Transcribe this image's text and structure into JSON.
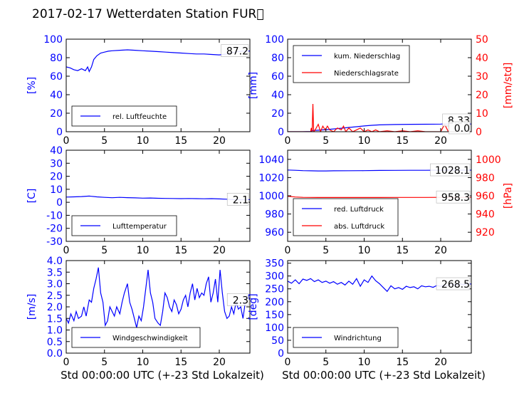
{
  "title": "2017-02-17 Wetterdaten Station FUR\u0000",
  "colors": {
    "blue": "#0000ff",
    "red": "#ff0000",
    "black": "#000000"
  },
  "chart_data": [
    {
      "id": "humidity",
      "type": "line",
      "xlim": [
        0,
        24
      ],
      "ylim": [
        0,
        100
      ],
      "xticks": [
        0,
        5,
        10,
        15,
        20
      ],
      "yticks": [
        0,
        20,
        40,
        60,
        80,
        100
      ],
      "ylabel": "[%]",
      "xlabel": "",
      "legend": {
        "placement": "lower-left",
        "entries": [
          {
            "label": "rel. Luftfeuchte",
            "color": "#0000ff"
          }
        ]
      },
      "latest_label": "87.2",
      "series": [
        {
          "name": "rel. Luftfeuchte",
          "color": "#0000ff",
          "x": [
            0,
            0.5,
            1,
            1.5,
            2,
            2.5,
            2.8,
            3,
            3.3,
            3.6,
            4,
            4.5,
            5,
            5.5,
            6,
            7,
            8,
            9,
            10,
            11,
            12,
            13,
            14,
            15,
            16,
            17,
            18,
            19,
            20,
            21,
            22,
            23,
            24
          ],
          "y": [
            70,
            69,
            67,
            66,
            68,
            66,
            70,
            65,
            70,
            78,
            82,
            85,
            86,
            87,
            87.5,
            88,
            88.5,
            88,
            87.5,
            87,
            86.5,
            86,
            85.5,
            85,
            84.5,
            84,
            84,
            83.5,
            83,
            84,
            86,
            87,
            87.2
          ]
        }
      ]
    },
    {
      "id": "precipitation",
      "type": "line",
      "xlim": [
        0,
        24
      ],
      "ylim": [
        0,
        100
      ],
      "y2lim": [
        0,
        50
      ],
      "xticks": [
        0,
        5,
        10,
        15,
        20
      ],
      "yticks": [
        0,
        20,
        40,
        60,
        80,
        100
      ],
      "y2ticks": [
        0,
        10,
        20,
        30,
        40,
        50
      ],
      "ylabel": "[mm]",
      "y2label": "[mm/std]",
      "xlabel": "",
      "legend": {
        "placement": "upper-left",
        "entries": [
          {
            "label": "kum. Niederschlag",
            "color": "#0000ff"
          },
          {
            "label": "Niederschlagsrate",
            "color": "#ff0000"
          }
        ]
      },
      "latest_labels": [
        "8.33",
        "0.0"
      ],
      "series": [
        {
          "name": "kum. Niederschlag",
          "axis": "left",
          "color": "#0000ff",
          "x": [
            0,
            2,
            3,
            3.3,
            4,
            5,
            6,
            7,
            8,
            9,
            10,
            11,
            12,
            14,
            16,
            18,
            20,
            20.2,
            24
          ],
          "y": [
            0,
            0,
            0.2,
            1.3,
            1.6,
            2.2,
            3,
            3.8,
            4.6,
            5.4,
            6.2,
            6.9,
            7.4,
            7.8,
            8.0,
            8.1,
            8.2,
            8.33,
            8.33
          ]
        },
        {
          "name": "Niederschlagsrate",
          "axis": "right",
          "color": "#ff0000",
          "x": [
            0,
            3,
            3.1,
            3.2,
            3.3,
            3.4,
            3.6,
            4,
            4.3,
            4.6,
            4.9,
            5.2,
            5.5,
            6,
            6.5,
            7,
            7.3,
            7.6,
            8,
            8.5,
            9,
            9.5,
            10,
            10.5,
            11,
            11.5,
            12,
            13,
            14,
            15,
            16,
            17,
            18,
            19,
            20,
            20.5,
            21,
            24
          ],
          "y": [
            0,
            0,
            2,
            0,
            15,
            0,
            1,
            4,
            0,
            3,
            1,
            3,
            1,
            0,
            2,
            1,
            3,
            0,
            2,
            0,
            1,
            2,
            0,
            1,
            0,
            1,
            0,
            0.5,
            0,
            0.5,
            0,
            0.5,
            0,
            0,
            0,
            4,
            0,
            0
          ]
        }
      ]
    },
    {
      "id": "temperature",
      "type": "line",
      "xlim": [
        0,
        24
      ],
      "ylim": [
        -30,
        40
      ],
      "xticks": [
        0,
        5,
        10,
        15,
        20
      ],
      "yticks": [
        -30,
        -20,
        -10,
        0,
        10,
        20,
        30,
        40
      ],
      "ylabel": "[C]",
      "xlabel": "",
      "legend": {
        "placement": "lower-left",
        "entries": [
          {
            "label": "Lufttemperatur",
            "color": "#0000ff"
          }
        ]
      },
      "latest_label": "2.1",
      "series": [
        {
          "name": "Lufttemperatur",
          "color": "#0000ff",
          "x": [
            0,
            1,
            2,
            3,
            4,
            5,
            6,
            7,
            8,
            9,
            10,
            11,
            12,
            13,
            14,
            15,
            16,
            17,
            18,
            19,
            20,
            21,
            22,
            23,
            24
          ],
          "y": [
            4,
            4.2,
            4.4,
            4.8,
            4.2,
            3.8,
            3.5,
            3.8,
            3.6,
            3.4,
            3.2,
            3.3,
            3.1,
            3.0,
            2.9,
            2.8,
            2.9,
            2.8,
            2.7,
            2.8,
            2.6,
            2.4,
            2.0,
            1.9,
            2.1
          ]
        }
      ]
    },
    {
      "id": "pressure",
      "type": "line",
      "xlim": [
        0,
        24
      ],
      "ylim": [
        950,
        1050
      ],
      "y2lim": [
        910,
        1010
      ],
      "xticks": [
        0,
        5,
        10,
        15,
        20
      ],
      "yticks": [
        960,
        980,
        1000,
        1020,
        1040
      ],
      "y2ticks": [
        920,
        940,
        960,
        980,
        1000
      ],
      "ylabel": "",
      "y2label": "[hPa]",
      "xlabel": "",
      "legend": {
        "placement": "lower-left",
        "entries": [
          {
            "label": "red. Luftdruck",
            "color": "#0000ff"
          },
          {
            "label": "abs. Luftdruck",
            "color": "#ff0000"
          }
        ]
      },
      "latest_labels": [
        "1028.1",
        "958.3"
      ],
      "series": [
        {
          "name": "red. Luftdruck",
          "axis": "left",
          "color": "#0000ff",
          "x": [
            0,
            1,
            2,
            3,
            4,
            5,
            6,
            8,
            10,
            12,
            14,
            16,
            18,
            20,
            22,
            24
          ],
          "y": [
            1028.3,
            1028.0,
            1027.6,
            1027.4,
            1027.3,
            1027.3,
            1027.4,
            1027.5,
            1027.6,
            1027.8,
            1027.9,
            1028.0,
            1028.0,
            1028.1,
            1028.1,
            1028.1
          ]
        },
        {
          "name": "abs. Luftdruck",
          "axis": "right",
          "color": "#ff0000",
          "x": [
            0,
            1,
            2,
            3,
            4,
            5,
            6,
            8,
            10,
            12,
            14,
            16,
            18,
            20,
            22,
            24
          ],
          "y": [
            959.5,
            958.7,
            958.3,
            958.2,
            958.1,
            958.1,
            958.1,
            958.1,
            958.1,
            958.1,
            958.2,
            958.2,
            958.2,
            958.3,
            958.3,
            958.3
          ]
        }
      ]
    },
    {
      "id": "wind_speed",
      "type": "line",
      "xlim": [
        0,
        24
      ],
      "ylim": [
        0,
        4
      ],
      "xticks": [
        0,
        5,
        10,
        15,
        20
      ],
      "yticks": [
        0.0,
        0.5,
        1.0,
        1.5,
        2.0,
        2.5,
        3.0,
        3.5,
        4.0
      ],
      "ylabel": "[m/s]",
      "xlabel": "Std 00:00:00 UTC (+-23 Std Lokalzeit)",
      "legend": {
        "placement": "lower-center",
        "entries": [
          {
            "label": "Windgeschwindigkeit",
            "color": "#0000ff"
          }
        ]
      },
      "latest_label": "2.3",
      "series": [
        {
          "name": "Windgeschwindigkeit",
          "color": "#0000ff",
          "x": [
            0,
            0.3,
            0.6,
            1,
            1.3,
            1.6,
            2,
            2.3,
            2.6,
            3,
            3.3,
            3.6,
            3.9,
            4.2,
            4.5,
            4.8,
            5.1,
            5.4,
            5.7,
            6,
            6.3,
            6.6,
            7,
            7.3,
            7.6,
            8,
            8.3,
            8.6,
            8.9,
            9.2,
            9.5,
            9.8,
            10.1,
            10.4,
            10.7,
            11,
            11.3,
            11.6,
            12,
            12.3,
            12.6,
            12.9,
            13.2,
            13.5,
            13.8,
            14.1,
            14.4,
            14.7,
            15,
            15.3,
            15.6,
            15.9,
            16.2,
            16.5,
            16.8,
            17.1,
            17.4,
            17.7,
            18,
            18.3,
            18.6,
            18.9,
            19.2,
            19.5,
            19.8,
            20.1,
            20.4,
            20.7,
            21,
            21.3,
            21.6,
            21.9,
            22.2,
            22.5,
            22.8,
            23.1,
            23.4,
            23.7,
            24
          ],
          "y": [
            1.5,
            1.3,
            1.7,
            1.4,
            1.8,
            1.5,
            1.6,
            2.0,
            1.6,
            2.3,
            2.2,
            2.8,
            3.2,
            3.7,
            2.6,
            2.2,
            1.2,
            1.4,
            2.0,
            1.8,
            1.6,
            2.0,
            1.7,
            2.2,
            2.6,
            3.0,
            2.2,
            1.9,
            1.5,
            1.1,
            1.6,
            1.4,
            2.0,
            2.8,
            3.6,
            2.6,
            2.2,
            1.5,
            1.3,
            1.2,
            1.8,
            2.6,
            2.4,
            2.0,
            1.8,
            2.3,
            2.1,
            1.7,
            1.9,
            2.3,
            2.5,
            2.0,
            2.6,
            3.0,
            2.3,
            2.8,
            2.4,
            2.6,
            2.5,
            3.0,
            3.3,
            2.2,
            2.6,
            3.2,
            2.2,
            3.6,
            2.6,
            1.8,
            1.5,
            1.6,
            2.0,
            1.7,
            2.2,
            1.9,
            2.0,
            1.5,
            2.2,
            2.5,
            2.3
          ]
        }
      ]
    },
    {
      "id": "wind_direction",
      "type": "line",
      "xlim": [
        0,
        24
      ],
      "ylim": [
        0,
        360
      ],
      "xticks": [
        0,
        5,
        10,
        15,
        20
      ],
      "yticks": [
        0,
        50,
        100,
        150,
        200,
        250,
        300,
        350
      ],
      "ylabel": "[deg]",
      "xlabel": "Std 00:00:00 UTC (+-23 Std Lokalzeit)",
      "legend": {
        "placement": "lower-left",
        "entries": [
          {
            "label": "Windrichtung",
            "color": "#0000ff"
          }
        ]
      },
      "latest_label": "268.5",
      "series": [
        {
          "name": "Windrichtung",
          "color": "#0000ff",
          "x": [
            0,
            0.5,
            1,
            1.5,
            2,
            2.5,
            3,
            3.5,
            4,
            4.5,
            5,
            5.5,
            6,
            6.5,
            7,
            7.5,
            8,
            8.5,
            9,
            9.5,
            10,
            10.5,
            11,
            11.5,
            12,
            12.5,
            13,
            13.5,
            14,
            14.5,
            15,
            15.5,
            16,
            16.5,
            17,
            17.5,
            18,
            18.5,
            19,
            19.5,
            20,
            20.5,
            21,
            21.5,
            22,
            22.5,
            23,
            23.5,
            24
          ],
          "y": [
            280,
            272,
            285,
            270,
            288,
            283,
            290,
            278,
            285,
            275,
            280,
            272,
            278,
            268,
            275,
            265,
            280,
            268,
            290,
            260,
            285,
            275,
            300,
            282,
            270,
            255,
            240,
            262,
            250,
            255,
            248,
            260,
            255,
            258,
            250,
            262,
            258,
            260,
            256,
            263,
            260,
            265,
            262,
            268,
            264,
            270,
            266,
            270,
            268.5
          ]
        }
      ]
    }
  ]
}
